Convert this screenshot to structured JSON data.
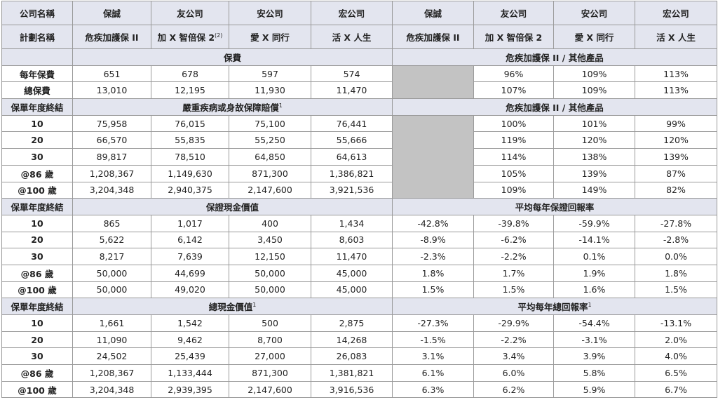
{
  "header": {
    "companies": [
      "公司名稱",
      "保誠",
      "友公司",
      "安公司",
      "宏公司",
      "保誠",
      "友公司",
      "安公司",
      "宏公司"
    ],
    "plan_label": "計劃名稱",
    "plans": [
      {
        "text": "危疾加護保 II"
      },
      {
        "text": "加 X 智倍保 2",
        "sup": "(2)"
      },
      {
        "text": "愛 X 同行"
      },
      {
        "text": "活 X 人生"
      },
      {
        "text": "危疾加護保 II"
      },
      {
        "text": "加 X 智倍保 2"
      },
      {
        "text": "愛 X 同行"
      },
      {
        "text": "活 X 人生"
      }
    ]
  },
  "sections": [
    {
      "left": {
        "text": "保費"
      },
      "right": {
        "text": "危疾加護保 II / 其他產品"
      },
      "gray": true,
      "rows": [
        {
          "label": "每年保費",
          "values": [
            "651",
            "678",
            "597",
            "574"
          ],
          "ratios": [
            "96%",
            "109%",
            "113%"
          ]
        },
        {
          "label": "總保費",
          "values": [
            "13,010",
            "12,195",
            "11,930",
            "11,470"
          ],
          "ratios": [
            "107%",
            "109%",
            "113%"
          ]
        }
      ]
    },
    {
      "label": "保單年度終結",
      "left": {
        "text": "嚴重疾病或身故保障賠償",
        "sup": "1"
      },
      "right": {
        "text": "危疾加護保 II / 其他產品"
      },
      "gray": true,
      "rows": [
        {
          "label": "10",
          "values": [
            "75,958",
            "76,015",
            "75,100",
            "76,441"
          ],
          "ratios": [
            "100%",
            "101%",
            "99%"
          ]
        },
        {
          "label": "20",
          "values": [
            "66,570",
            "55,835",
            "55,250",
            "55,666"
          ],
          "ratios": [
            "119%",
            "120%",
            "120%"
          ]
        },
        {
          "label": "30",
          "values": [
            "89,817",
            "78,510",
            "64,850",
            "64,613"
          ],
          "ratios": [
            "114%",
            "138%",
            "139%"
          ]
        },
        {
          "label": "@86 歲",
          "values": [
            "1,208,367",
            "1,149,630",
            "871,300",
            "1,386,821"
          ],
          "ratios": [
            "105%",
            "139%",
            "87%"
          ]
        },
        {
          "label": "@100 歲",
          "values": [
            "3,204,348",
            "2,940,375",
            "2,147,600",
            "3,921,536"
          ],
          "ratios": [
            "109%",
            "149%",
            "82%"
          ]
        }
      ]
    },
    {
      "label": "保單年度終結",
      "left": {
        "text": "保證現金價值"
      },
      "right": {
        "text": "平均每年保證回報率"
      },
      "rows": [
        {
          "label": "10",
          "values": [
            "865",
            "1,017",
            "400",
            "1,434"
          ],
          "ratios": [
            "-42.8%",
            "-39.8%",
            "-59.9%",
            "-27.8%"
          ]
        },
        {
          "label": "20",
          "values": [
            "5,622",
            "6,142",
            "3,450",
            "8,603"
          ],
          "ratios": [
            "-8.9%",
            "-6.2%",
            "-14.1%",
            "-2.8%"
          ]
        },
        {
          "label": "30",
          "values": [
            "8,217",
            "7,639",
            "12,150",
            "11,470"
          ],
          "ratios": [
            "-2.3%",
            "-2.2%",
            "0.1%",
            "0.0%"
          ]
        },
        {
          "label": "@86 歲",
          "values": [
            "50,000",
            "44,699",
            "50,000",
            "45,000"
          ],
          "ratios": [
            "1.8%",
            "1.7%",
            "1.9%",
            "1.8%"
          ]
        },
        {
          "label": "@100 歲",
          "values": [
            "50,000",
            "49,020",
            "50,000",
            "45,000"
          ],
          "ratios": [
            "1.5%",
            "1.5%",
            "1.6%",
            "1.5%"
          ]
        }
      ]
    },
    {
      "label": "保單年度終結",
      "left": {
        "text": "總現金價值",
        "sup": "1"
      },
      "right": {
        "text": "平均每年總回報率",
        "sup": "1"
      },
      "rows": [
        {
          "label": "10",
          "values": [
            "1,661",
            "1,542",
            "500",
            "2,875"
          ],
          "ratios": [
            "-27.3%",
            "-29.9%",
            "-54.4%",
            "-13.1%"
          ]
        },
        {
          "label": "20",
          "values": [
            "11,090",
            "9,462",
            "8,700",
            "14,268"
          ],
          "ratios": [
            "-1.5%",
            "-2.2%",
            "-3.1%",
            "2.0%"
          ]
        },
        {
          "label": "30",
          "values": [
            "24,502",
            "25,439",
            "27,000",
            "26,083"
          ],
          "ratios": [
            "3.1%",
            "3.4%",
            "3.9%",
            "4.0%"
          ]
        },
        {
          "label": "@86 歲",
          "values": [
            "1,208,367",
            "1,133,444",
            "871,300",
            "1,381,821"
          ],
          "ratios": [
            "6.1%",
            "6.0%",
            "5.8%",
            "6.5%"
          ]
        },
        {
          "label": "@100 歲",
          "values": [
            "3,204,348",
            "2,939,395",
            "2,147,600",
            "3,916,536"
          ],
          "ratios": [
            "6.3%",
            "6.2%",
            "5.9%",
            "6.7%"
          ]
        }
      ]
    }
  ]
}
